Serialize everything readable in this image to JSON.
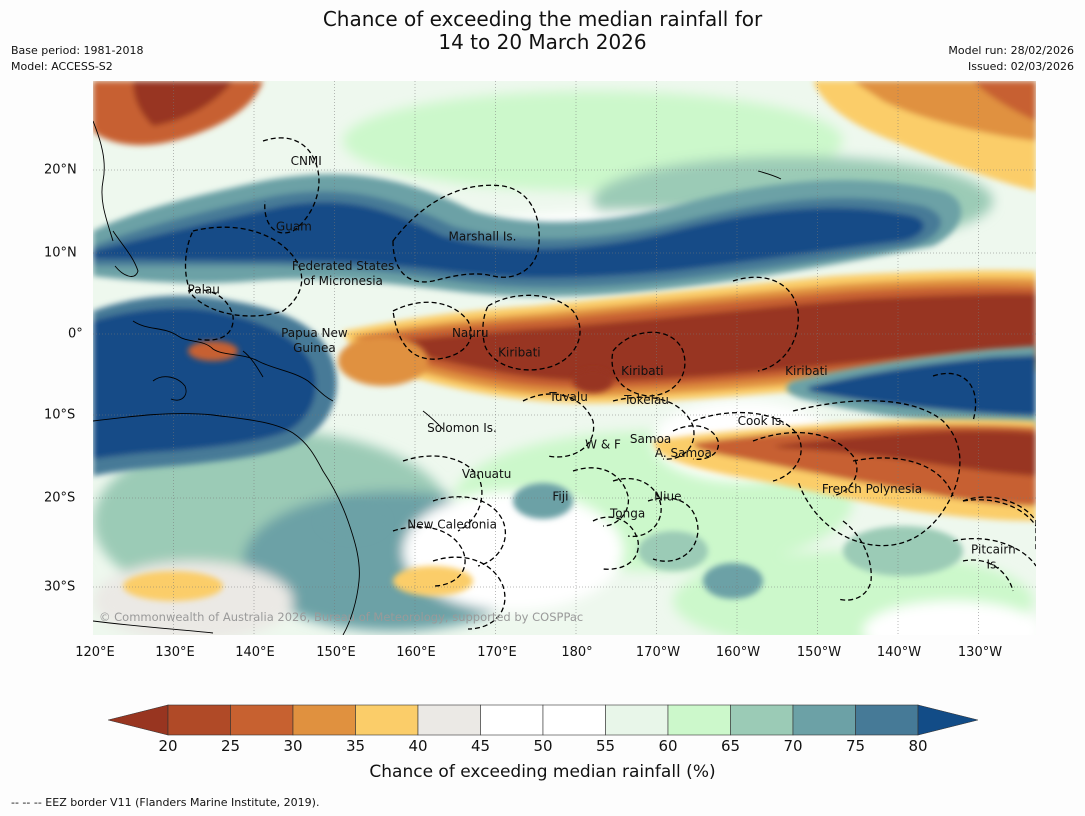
{
  "title": {
    "line1": "Chance of exceeding the median rainfall for",
    "line2": "14 to 20 March 2026"
  },
  "meta": {
    "base_period": "Base period: 1981-2018",
    "model": "Model: ACCESS-S2",
    "model_run": "Model run: 28/02/2026",
    "issued": "Issued: 02/03/2026"
  },
  "axes": {
    "lon_labels": [
      "120°E",
      "130°E",
      "140°E",
      "150°E",
      "160°E",
      "170°E",
      "180°",
      "170°W",
      "160°W",
      "150°W",
      "140°W",
      "130°W"
    ],
    "lat_labels": [
      "20°N",
      "10°N",
      "0°",
      "10°S",
      "20°S",
      "30°S"
    ]
  },
  "regions": [
    {
      "name": "CNMI",
      "lon": 146,
      "lat": 20.5
    },
    {
      "name": "Guam",
      "lon": 144.5,
      "lat": 12.7
    },
    {
      "name": "Marshall Is.",
      "lon": 167.5,
      "lat": 11.5
    },
    {
      "name": "Federated States",
      "lon": 150.5,
      "lat": 8.0
    },
    {
      "name": "of Micronesia",
      "lon": 150.5,
      "lat": 6.2
    },
    {
      "name": "Palau",
      "lon": 133.5,
      "lat": 5.2
    },
    {
      "name": "Papua New",
      "lon": 147,
      "lat": 0.0
    },
    {
      "name": "Guinea",
      "lon": 147,
      "lat": -1.8
    },
    {
      "name": "Nauru",
      "lon": 166,
      "lat": 0.0
    },
    {
      "name": "Kiribati",
      "lon": 172,
      "lat": -2.3
    },
    {
      "name": "Kiribati",
      "lon": -173,
      "lat": -4.5
    },
    {
      "name": "Kiribati",
      "lon": -153,
      "lat": -4.5
    },
    {
      "name": "Tuvalu",
      "lon": 178,
      "lat": -7.6
    },
    {
      "name": "Tokelau",
      "lon": -172.5,
      "lat": -8.0
    },
    {
      "name": "Cook Is.",
      "lon": -158.5,
      "lat": -10.5
    },
    {
      "name": "Samoa",
      "lon": -172,
      "lat": -12.6
    },
    {
      "name": "W & F",
      "lon": -177.8,
      "lat": -13.3
    },
    {
      "name": "A. Samoa",
      "lon": -168,
      "lat": -14.3
    },
    {
      "name": "Solomon Is.",
      "lon": 165,
      "lat": -11.3
    },
    {
      "name": "Vanuatu",
      "lon": 168,
      "lat": -16.8
    },
    {
      "name": "Fiji",
      "lon": 177,
      "lat": -19.5
    },
    {
      "name": "Niue",
      "lon": -169.9,
      "lat": -19.5
    },
    {
      "name": "Tonga",
      "lon": -174.8,
      "lat": -21.5
    },
    {
      "name": "French Polynesia",
      "lon": -145,
      "lat": -18.6
    },
    {
      "name": "New Caledonia",
      "lon": 163.8,
      "lat": -22.8
    },
    {
      "name": "Pitcairn",
      "lon": -130.2,
      "lat": -25.8
    },
    {
      "name": "Is.",
      "lon": -130.2,
      "lat": -27.6
    }
  ],
  "copyright": "© Commonwealth of Australia 2026, Bureau of Meteorology, supported by COSPPac",
  "colorbar": {
    "ticks": [
      "20",
      "25",
      "30",
      "35",
      "40",
      "45",
      "50",
      "55",
      "60",
      "65",
      "70",
      "75",
      "80"
    ],
    "label": "Chance of exceeding median rainfall (%)",
    "colors": {
      "below20": "#983520",
      "20-25": "#b04a27",
      "25-30": "#c76130",
      "30-35": "#e0913f",
      "35-40": "#fbcd69",
      "40-45": "#ebe9e5",
      "45-50": "#ffffff",
      "50-55": "#ffffff",
      "55-60": "#e8f6e9",
      "60-65": "#ccf8cb",
      "65-70": "#9bcbb6",
      "70-75": "#6ca1a6",
      "75-80": "#467a97",
      "above80": "#124c87"
    }
  },
  "legend": "--  --  -- EEZ border V11 (Flanders Marine Institute, 2019)."
}
